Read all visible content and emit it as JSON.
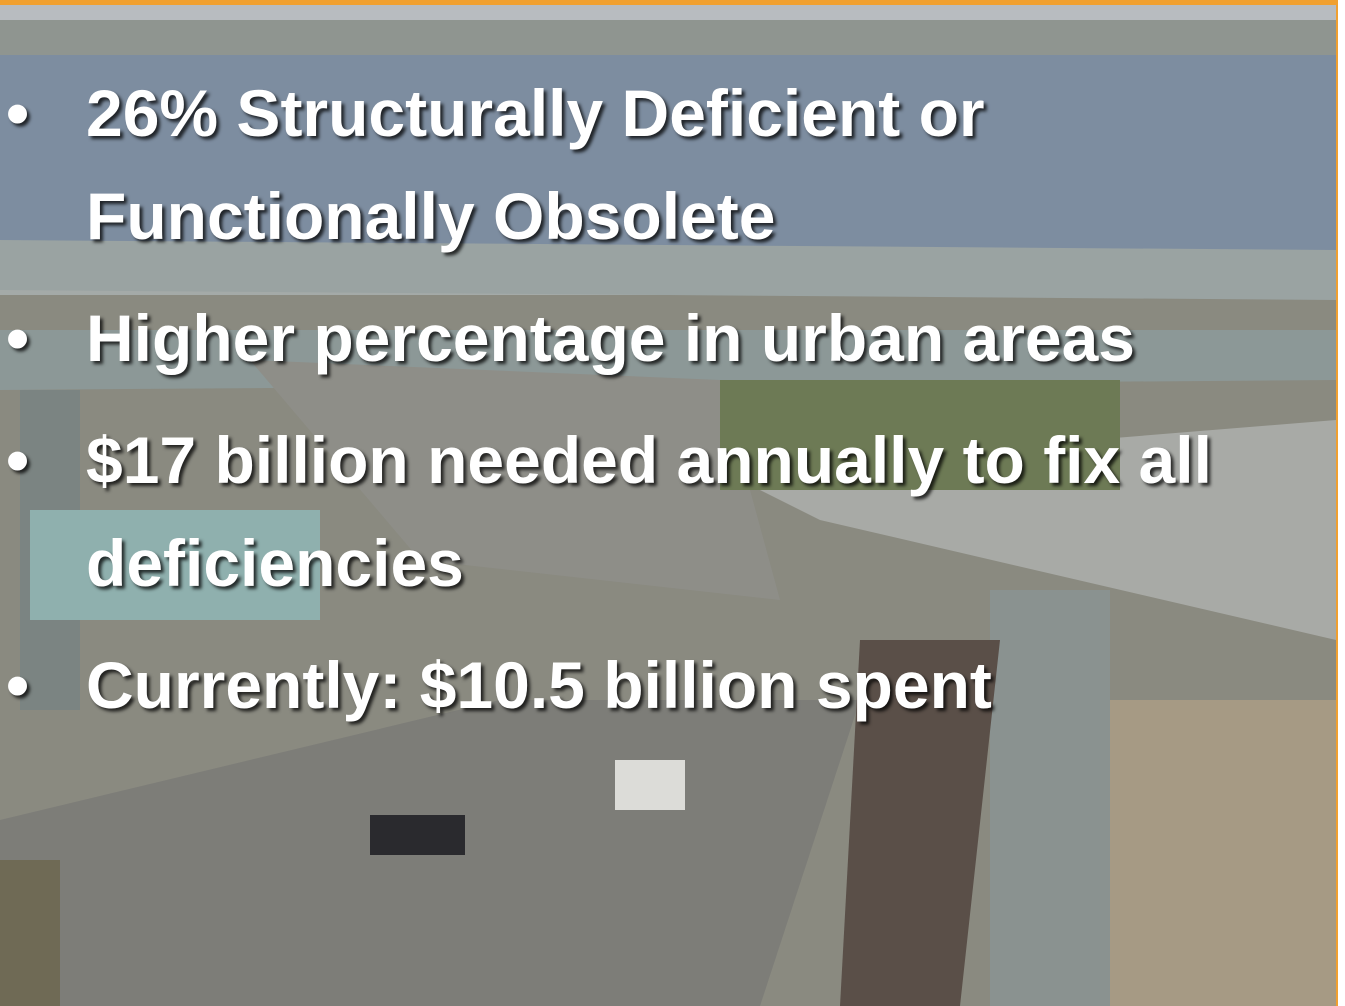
{
  "bullets": [
    "26% Structurally Deficient or Functionally Obsolete",
    "Higher percentage in urban areas",
    "$17 billion needed annually to fix all deficiencies",
    "Currently: $10.5 billion spent"
  ]
}
